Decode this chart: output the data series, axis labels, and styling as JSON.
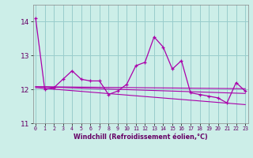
{
  "xlabel": "Windchill (Refroidissement éolien,°C)",
  "ylabel": "",
  "background_color": "#cceee8",
  "grid_color": "#99cccc",
  "line_color": "#aa00aa",
  "x_values": [
    0,
    1,
    2,
    3,
    4,
    5,
    6,
    7,
    8,
    9,
    10,
    11,
    12,
    13,
    14,
    15,
    16,
    17,
    18,
    19,
    20,
    21,
    22,
    23
  ],
  "main_data": [
    14.1,
    12.0,
    12.05,
    12.3,
    12.55,
    12.3,
    12.25,
    12.25,
    11.85,
    11.95,
    12.15,
    12.7,
    12.8,
    13.55,
    13.25,
    12.6,
    12.85,
    11.9,
    11.85,
    11.8,
    11.75,
    11.6,
    12.2,
    11.95
  ],
  "reg_lines": [
    [
      12.08,
      12.02
    ],
    [
      12.08,
      11.88
    ],
    [
      12.05,
      11.55
    ]
  ],
  "ylim": [
    11.0,
    14.5
  ],
  "yticks": [
    11,
    12,
    13,
    14
  ],
  "xticks": [
    0,
    1,
    2,
    3,
    4,
    5,
    6,
    7,
    8,
    9,
    10,
    11,
    12,
    13,
    14,
    15,
    16,
    17,
    18,
    19,
    20,
    21,
    22,
    23
  ],
  "xlim": [
    -0.3,
    23.3
  ]
}
